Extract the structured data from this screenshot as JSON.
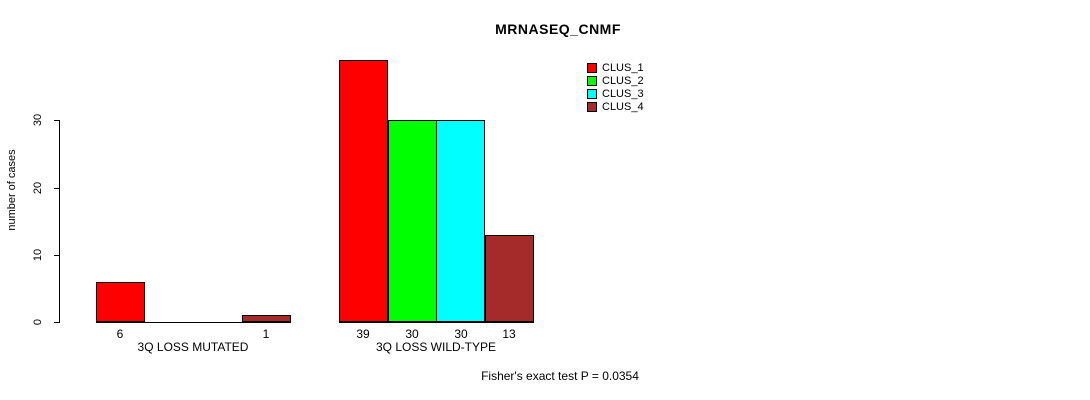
{
  "chart_data": {
    "type": "bar",
    "title": "MRNASEQ_CNMF",
    "ylabel": "number of cases",
    "xlabel": "",
    "ylim": [
      0,
      39
    ],
    "yticks": [
      0,
      10,
      20,
      30
    ],
    "grid": false,
    "legend_position": "top-right",
    "series": [
      {
        "name": "CLUS_1",
        "color": "#FF0000"
      },
      {
        "name": "CLUS_2",
        "color": "#00FF00"
      },
      {
        "name": "CLUS_3",
        "color": "#00FFFF"
      },
      {
        "name": "CLUS_4",
        "color": "#A52A2A"
      }
    ],
    "groups": [
      {
        "label": "3Q LOSS MUTATED",
        "values": [
          6,
          0,
          0,
          1
        ],
        "value_labels": [
          "6",
          "",
          "",
          "1"
        ]
      },
      {
        "label": "3Q LOSS WILD-TYPE",
        "values": [
          39,
          30,
          30,
          13
        ],
        "value_labels": [
          "39",
          "30",
          "30",
          "13"
        ]
      }
    ],
    "footer": "Fisher's exact test P = 0.0354",
    "colors": {
      "background": "#FFFFFF",
      "axis": "#000000",
      "text": "#000000"
    }
  }
}
